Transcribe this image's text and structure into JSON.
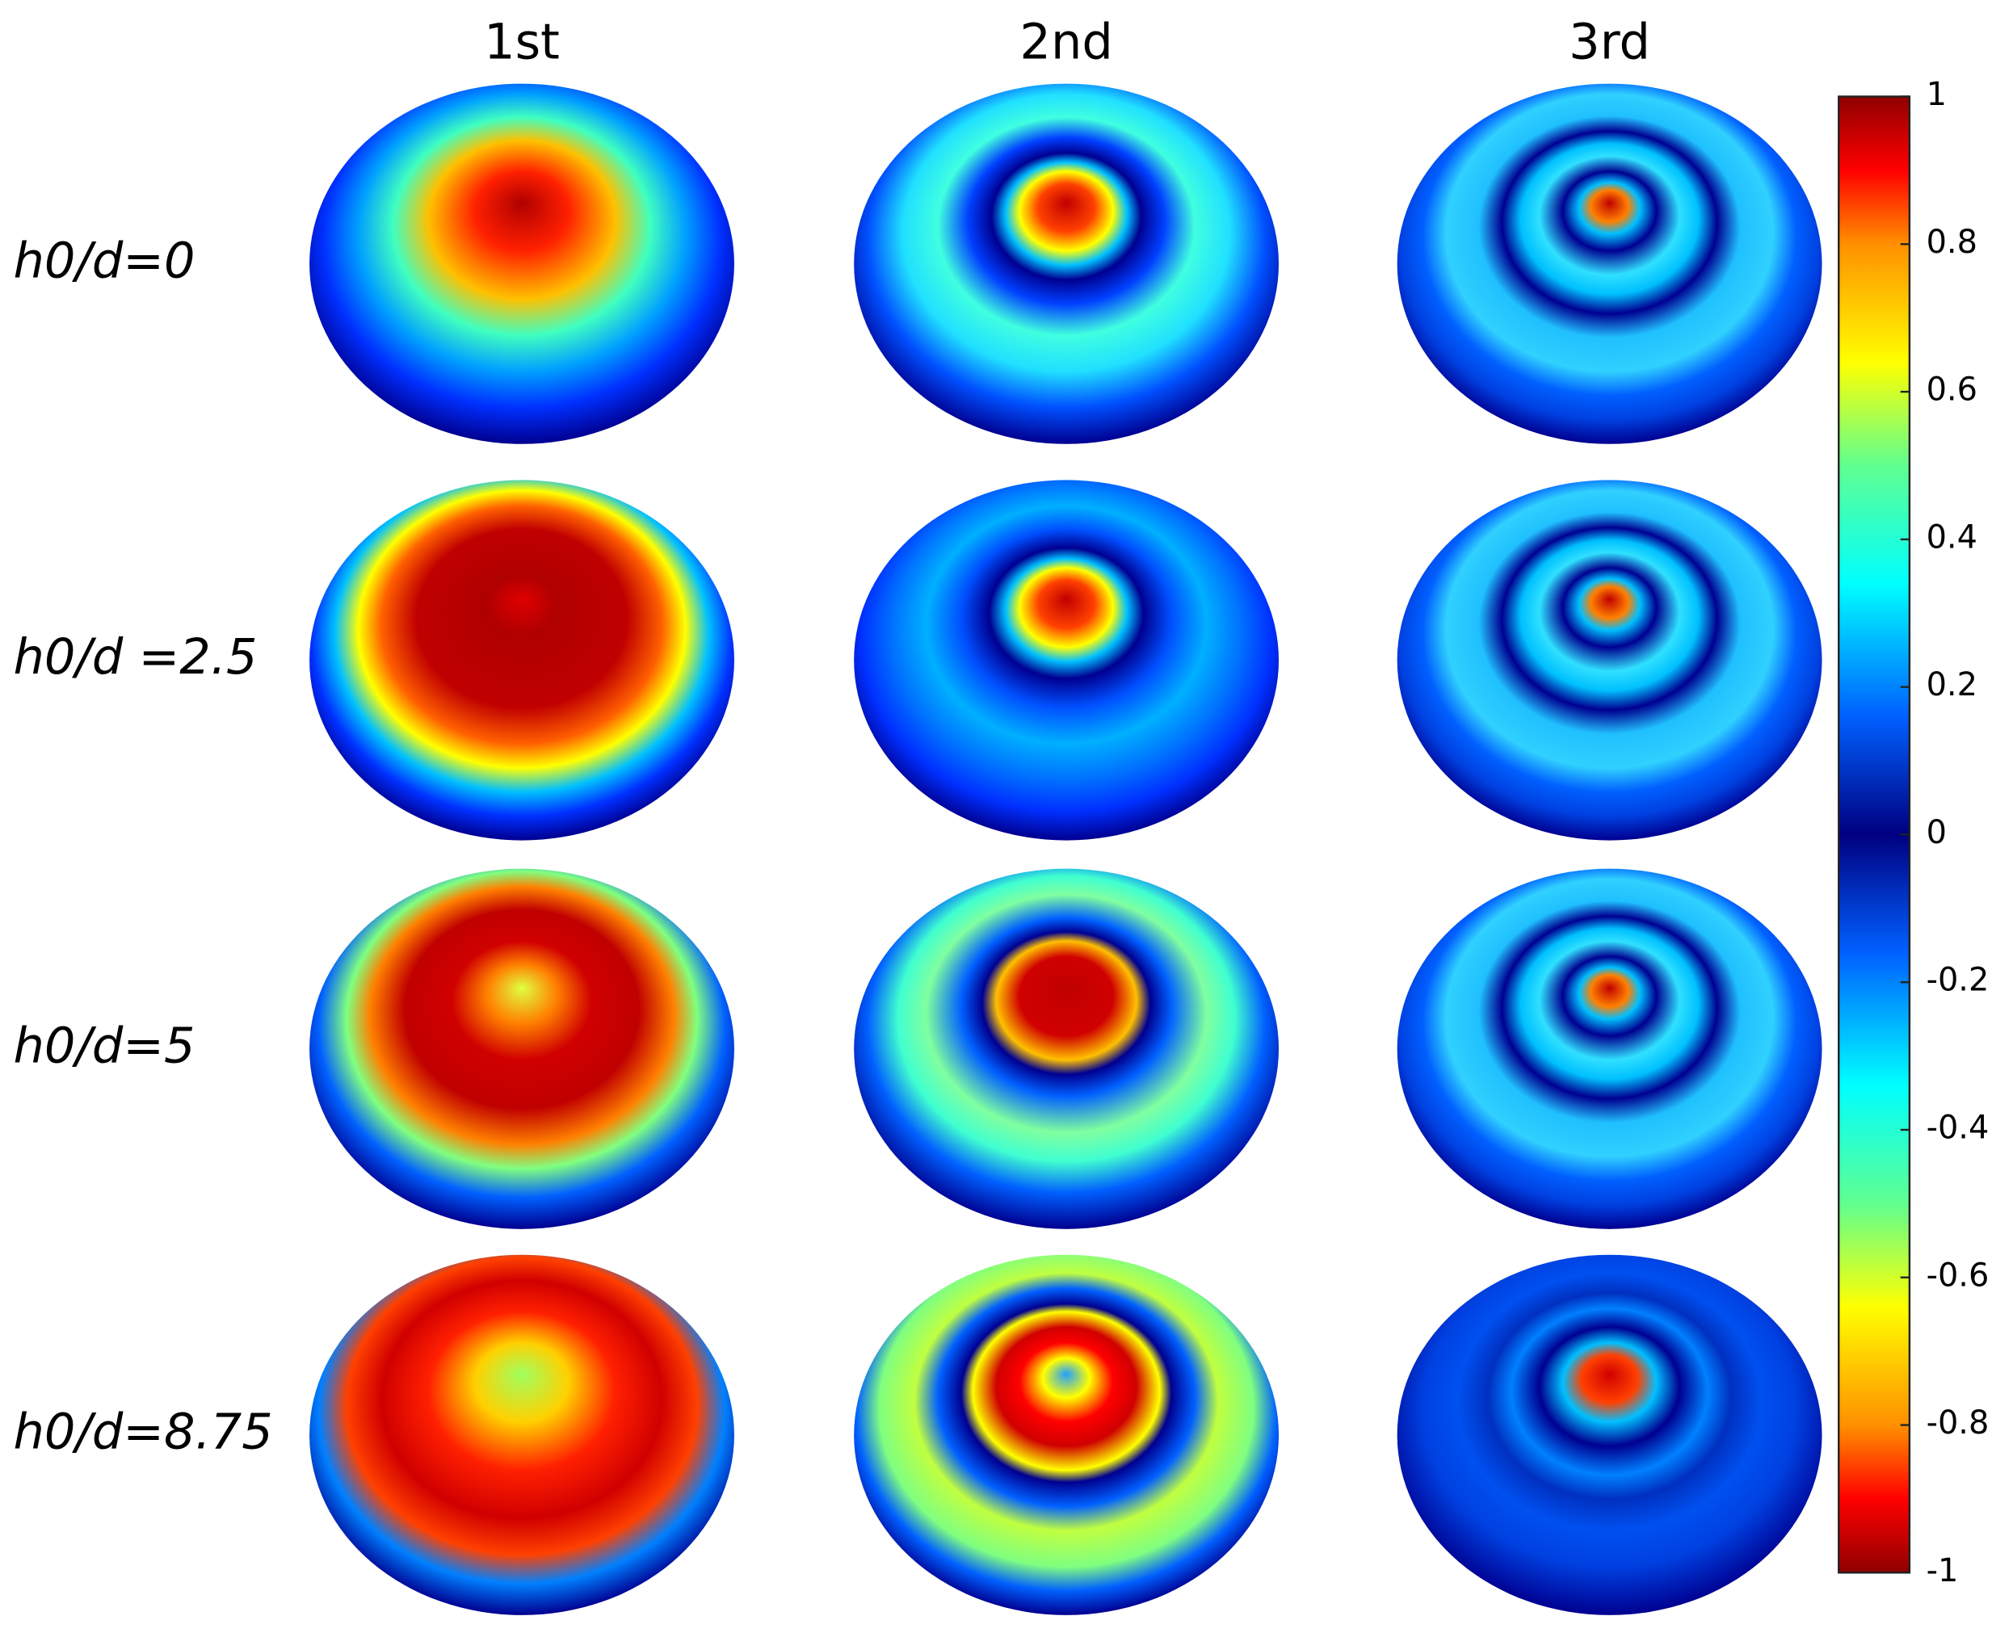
{
  "figure": {
    "columns": [
      "1st",
      "2nd",
      "3rd"
    ],
    "rows": [
      "h0/d=0",
      "h0/d =2.5",
      "h0/d=5",
      "h0/d=8.75"
    ],
    "colorbar": {
      "ylim": [
        -1,
        1
      ],
      "ticks": [
        1,
        0.8,
        0.6,
        0.4,
        0.2,
        0,
        -0.2,
        -0.4,
        -0.6,
        -0.8,
        -1
      ]
    }
  }
}
